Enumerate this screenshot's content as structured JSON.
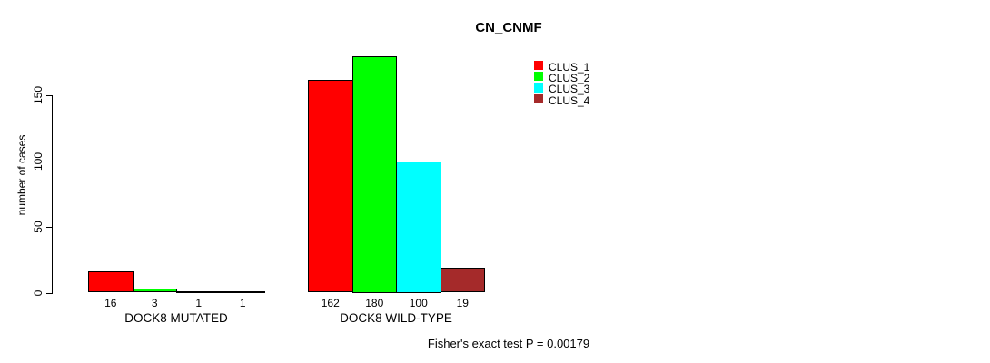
{
  "title": "CN_CNMF",
  "ylabel": "number of cases",
  "footer": "Fisher's exact test P = 0.00179",
  "chart_data": {
    "type": "bar",
    "title": "CN_CNMF",
    "xlabel": "",
    "ylabel": "number of cases",
    "categories": [
      "DOCK8 MUTATED",
      "DOCK8 WILD-TYPE"
    ],
    "series": [
      {
        "name": "CLUS_1",
        "color": "#FF0000",
        "values": [
          16,
          162
        ]
      },
      {
        "name": "CLUS_2",
        "color": "#00FF00",
        "values": [
          3,
          180
        ]
      },
      {
        "name": "CLUS_3",
        "color": "#00FFFF",
        "values": [
          1,
          100
        ]
      },
      {
        "name": "CLUS_4",
        "color": "#A52A2A",
        "values": [
          1,
          19
        ]
      }
    ],
    "bar_value_labels": [
      [
        16,
        3,
        1,
        1
      ],
      [
        162,
        180,
        100,
        19
      ]
    ],
    "yticks": [
      0,
      50,
      100,
      150
    ],
    "ylim": [
      0,
      186
    ],
    "grid": false,
    "legend_position": "top-right",
    "annotation": "Fisher's exact test P = 0.00179"
  }
}
